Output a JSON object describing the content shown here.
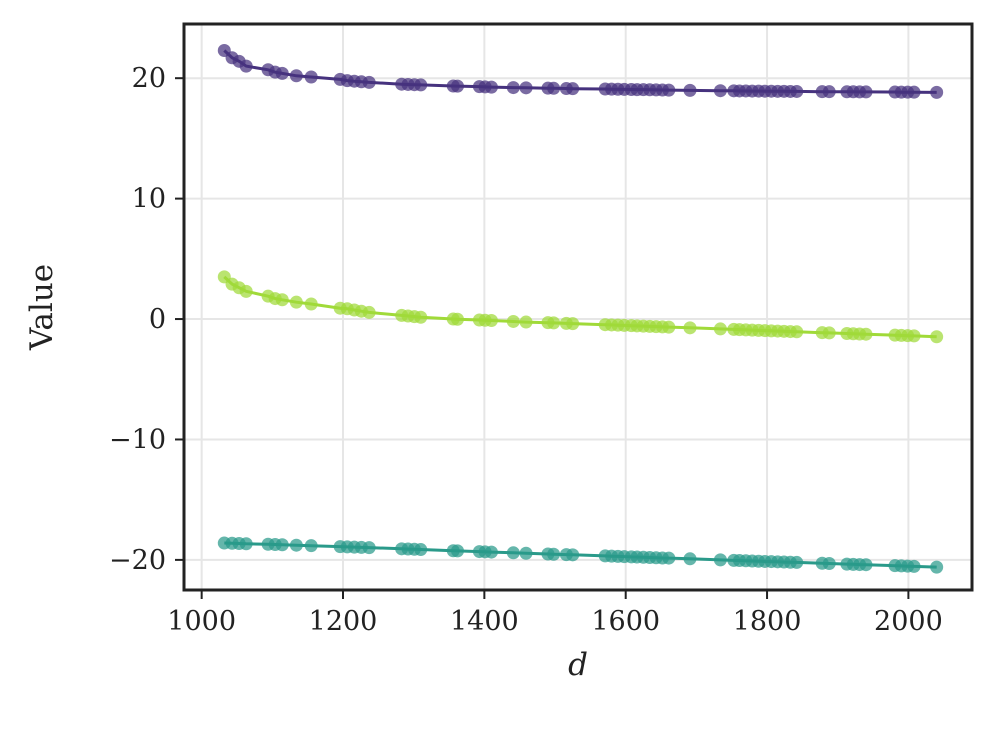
{
  "chart_data": {
    "type": "scatter",
    "title": "",
    "xlabel": "d",
    "ylabel": "Value",
    "xlim": [
      975,
      2090
    ],
    "ylim": [
      -22.5,
      24.5
    ],
    "xticks": [
      1000,
      1200,
      1400,
      1600,
      1800,
      2000
    ],
    "xtick_labels": [
      "1000",
      "1200",
      "1400",
      "1600",
      "1800",
      "2000"
    ],
    "yticks": [
      -20,
      -10,
      0,
      10,
      20
    ],
    "ytick_labels": [
      "−20",
      "−10",
      "0",
      "10",
      "20"
    ],
    "grid": true,
    "legend": "none",
    "x": [
      1032,
      1043,
      1053,
      1063,
      1094,
      1104,
      1114,
      1134,
      1155,
      1196,
      1206,
      1216,
      1226,
      1237,
      1283,
      1292,
      1301,
      1310,
      1356,
      1362,
      1393,
      1401,
      1410,
      1441,
      1459,
      1490,
      1498,
      1516,
      1525,
      1571,
      1580,
      1589,
      1598,
      1608,
      1616,
      1625,
      1634,
      1643,
      1652,
      1661,
      1691,
      1734,
      1753,
      1761,
      1770,
      1779,
      1788,
      1797,
      1806,
      1815,
      1824,
      1833,
      1842,
      1878,
      1888,
      1913,
      1922,
      1931,
      1940,
      1981,
      1990,
      1999,
      2008,
      2040
    ],
    "series": [
      {
        "color": "#46327e",
        "values": [
          22.3,
          21.7,
          21.4,
          21.0,
          20.7,
          20.5,
          20.4,
          20.2,
          20.1,
          19.9,
          19.8,
          19.75,
          19.7,
          19.65,
          19.5,
          19.48,
          19.46,
          19.44,
          19.35,
          19.34,
          19.3,
          19.28,
          19.26,
          19.22,
          19.2,
          19.17,
          19.16,
          19.14,
          19.13,
          19.1,
          19.09,
          19.08,
          19.07,
          19.06,
          19.05,
          19.05,
          19.04,
          19.03,
          19.02,
          19.01,
          18.99,
          18.96,
          18.95,
          18.94,
          18.94,
          18.93,
          18.93,
          18.92,
          18.92,
          18.91,
          18.91,
          18.9,
          18.9,
          18.88,
          18.88,
          18.87,
          18.87,
          18.86,
          18.86,
          18.85,
          18.84,
          18.84,
          18.84,
          18.82
        ]
      },
      {
        "color": "#a0da39",
        "values": [
          3.5,
          2.9,
          2.6,
          2.3,
          1.9,
          1.7,
          1.6,
          1.4,
          1.25,
          0.9,
          0.85,
          0.75,
          0.65,
          0.55,
          0.3,
          0.25,
          0.2,
          0.15,
          0.0,
          -0.02,
          -0.08,
          -0.1,
          -0.12,
          -0.2,
          -0.25,
          -0.3,
          -0.32,
          -0.36,
          -0.38,
          -0.47,
          -0.49,
          -0.51,
          -0.53,
          -0.55,
          -0.57,
          -0.59,
          -0.61,
          -0.63,
          -0.65,
          -0.67,
          -0.73,
          -0.82,
          -0.86,
          -0.88,
          -0.9,
          -0.92,
          -0.94,
          -0.96,
          -0.98,
          -1.0,
          -1.02,
          -1.04,
          -1.06,
          -1.13,
          -1.15,
          -1.2,
          -1.22,
          -1.24,
          -1.26,
          -1.34,
          -1.36,
          -1.38,
          -1.4,
          -1.47
        ]
      },
      {
        "color": "#2a9a8a",
        "values": [
          -18.6,
          -18.62,
          -18.64,
          -18.66,
          -18.7,
          -18.72,
          -18.74,
          -18.78,
          -18.82,
          -18.9,
          -18.92,
          -18.94,
          -18.96,
          -18.98,
          -19.08,
          -19.1,
          -19.12,
          -19.14,
          -19.24,
          -19.25,
          -19.31,
          -19.33,
          -19.35,
          -19.41,
          -19.45,
          -19.51,
          -19.53,
          -19.56,
          -19.58,
          -19.67,
          -19.69,
          -19.71,
          -19.73,
          -19.75,
          -19.76,
          -19.78,
          -19.8,
          -19.82,
          -19.84,
          -19.85,
          -19.91,
          -20.0,
          -20.04,
          -20.05,
          -20.07,
          -20.09,
          -20.11,
          -20.13,
          -20.14,
          -20.16,
          -20.18,
          -20.2,
          -20.21,
          -20.28,
          -20.3,
          -20.35,
          -20.37,
          -20.39,
          -20.4,
          -20.48,
          -20.5,
          -20.52,
          -20.54,
          -20.6
        ]
      }
    ]
  }
}
